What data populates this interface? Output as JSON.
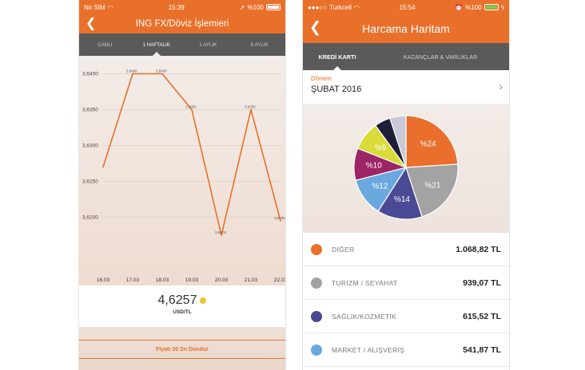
{
  "left": {
    "status": {
      "carrier": "No SIM",
      "time": "15:39",
      "battery": "%100"
    },
    "title": "ING FX/Döviz İşlemieri",
    "tabs": [
      {
        "label": "CANLI"
      },
      {
        "label": "1 HAFTALIK"
      },
      {
        "label": "1 AYLIK"
      },
      {
        "label": "6 AYLIK"
      }
    ],
    "active_tab": 1,
    "rate": {
      "value": "4,6257",
      "unit": "USD/TL"
    },
    "freeze_label": "Fiyatı 20 Sn Dondur",
    "accent": "#e9702b"
  },
  "chart_data": {
    "type": "line",
    "x": [
      "16.03",
      "17.03",
      "18.03",
      "19.03",
      "20.03",
      "21.03",
      "22.03"
    ],
    "series": [
      {
        "values": [
          3.627,
          3.64,
          3.64,
          3.635,
          3.6175,
          3.635,
          3.6195
        ]
      }
    ],
    "point_labels": [
      {
        "x_index": 1,
        "text": "3,6400"
      },
      {
        "x_index": 2,
        "text": "3,6400"
      },
      {
        "x_index": 3,
        "text": "3,6350"
      },
      {
        "x_index": 4,
        "text": "3,6175"
      },
      {
        "x_index": 5,
        "text": "3,6350"
      },
      {
        "x_index": 6,
        "text": "3,6195"
      }
    ],
    "y_ticks": [
      {
        "value": 3.64,
        "label": "3,6400"
      },
      {
        "value": 3.635,
        "label": "3,6350"
      },
      {
        "value": 3.63,
        "label": "3,6300"
      },
      {
        "value": 3.625,
        "label": "3,6250"
      },
      {
        "value": 3.62,
        "label": "3,6200"
      }
    ],
    "ylim": [
      3.6125,
      3.6425
    ],
    "grid": true,
    "line_color": "#e9702b"
  },
  "right": {
    "status": {
      "carrier": "Turkcell",
      "time": "15:54",
      "battery": "%100"
    },
    "title": "Harcama Haritam",
    "tabs": [
      {
        "label": "KREDİ KARTI"
      },
      {
        "label": "KAZANÇLAR & VARLIKLAR"
      }
    ],
    "period_label": "Dönem",
    "period_value": "ŞUBAT 2016",
    "pie": [
      {
        "label": "%24",
        "value": 24,
        "color": "#ea6f2d"
      },
      {
        "label": "%21",
        "value": 21,
        "color": "#a3a3a3"
      },
      {
        "label": "%14",
        "value": 14,
        "color": "#4a4a94"
      },
      {
        "label": "%12",
        "value": 12,
        "color": "#6aa8df"
      },
      {
        "label": "%10",
        "value": 10,
        "color": "#9c2565"
      },
      {
        "label": "%9",
        "value": 9,
        "color": "#d8db3a"
      },
      {
        "label": "",
        "value": 5,
        "color": "#1e1e38"
      },
      {
        "label": "",
        "value": 5,
        "color": "#c8c8d6"
      }
    ],
    "categories": [
      {
        "name": "DİĞER",
        "amount": "1.068,82 TL",
        "color": "#ea6f2d"
      },
      {
        "name": "TURİZM / SEYAHAT",
        "amount": "939,07 TL",
        "color": "#a3a3a3"
      },
      {
        "name": "SAĞLIK/KOZMETİK",
        "amount": "615,52 TL",
        "color": "#4a4a94"
      },
      {
        "name": "MARKET / ALIŞVERİŞ",
        "amount": "541,87 TL",
        "color": "#6aa8df"
      }
    ]
  }
}
